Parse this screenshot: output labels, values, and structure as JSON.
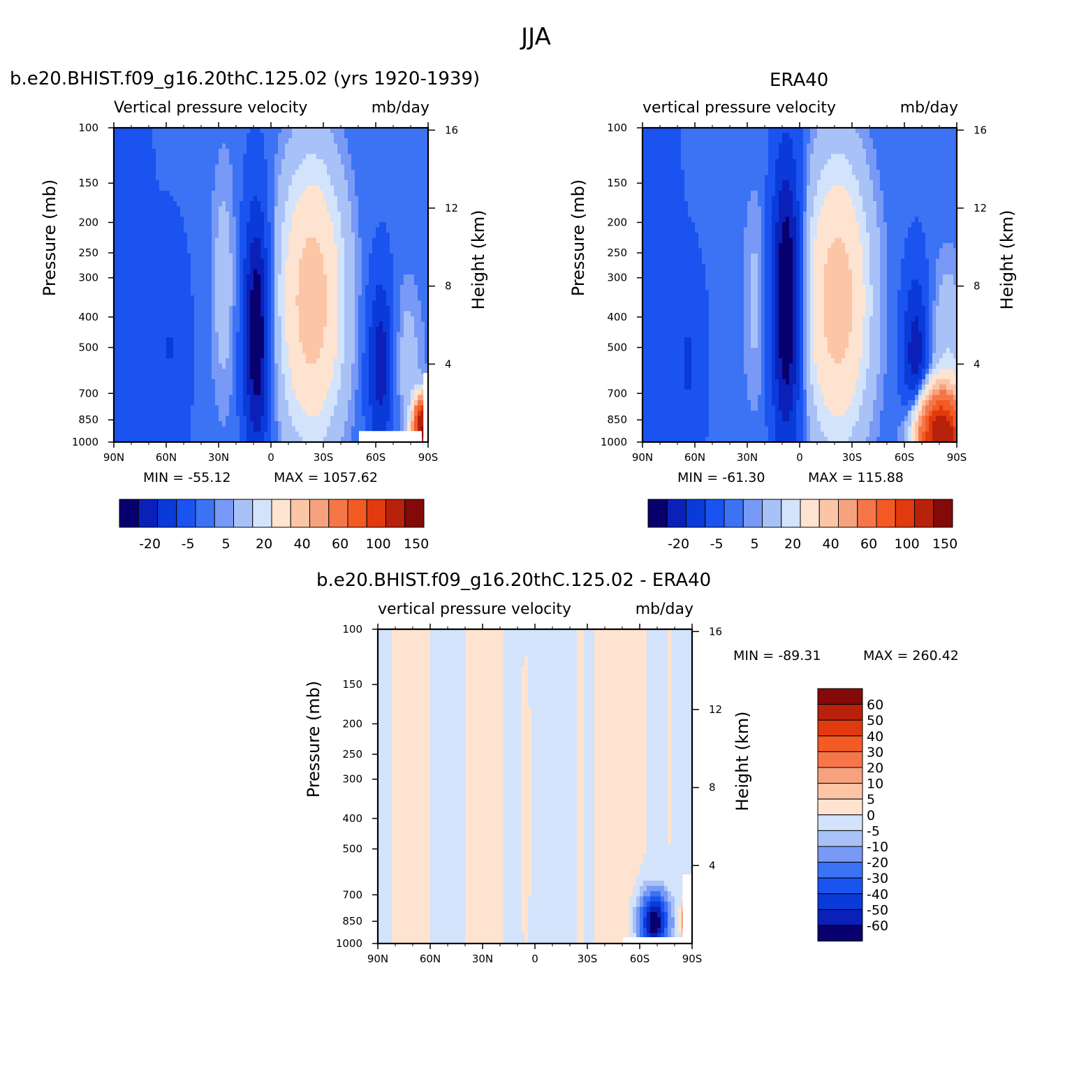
{
  "page": {
    "title": "JJA"
  },
  "chart_data": [
    {
      "type": "heatmap",
      "case_title": "b.e20.BHIST.f09_g16.20thC.125.02 (yrs 1920-1939)",
      "left_subtitle": "Vertical pressure velocity",
      "right_subtitle": "mb/day",
      "ylabel": "Pressure (mb)",
      "ylabel_right": "Height (km)",
      "x_ticks": [
        "90N",
        "60N",
        "30N",
        "0",
        "30S",
        "60S",
        "90S"
      ],
      "y_ticks": [
        "100",
        "150",
        "200",
        "250",
        "300",
        "400",
        "500",
        "700",
        "850",
        "1000"
      ],
      "y_ticks_right": [
        "16",
        "12",
        "8",
        "4"
      ],
      "ylim": [
        1000,
        100
      ],
      "min_label": "MIN = -55.12",
      "max_label": "MAX = 1057.62",
      "colorbar_labels": [
        "-20",
        "-5",
        "5",
        "20",
        "40",
        "60",
        "100",
        "150"
      ],
      "colorbar_colors": [
        "#08006e",
        "#0a20b8",
        "#0a3ad8",
        "#1a53f0",
        "#3c73f5",
        "#7899f5",
        "#a8c2f7",
        "#d2e3fb",
        "#fde3d0",
        "#fbc5a6",
        "#f7a27e",
        "#f6764a",
        "#f45a24",
        "#e03a0e",
        "#b8210a",
        "#840a0a"
      ]
    },
    {
      "type": "heatmap",
      "case_title": "ERA40",
      "left_subtitle": "vertical pressure velocity",
      "right_subtitle": "mb/day",
      "ylabel": "Pressure (mb)",
      "ylabel_right": "Height (km)",
      "x_ticks": [
        "90N",
        "60N",
        "30N",
        "0",
        "30S",
        "60S",
        "90S"
      ],
      "y_ticks": [
        "100",
        "150",
        "200",
        "250",
        "300",
        "400",
        "500",
        "700",
        "850",
        "1000"
      ],
      "y_ticks_right": [
        "16",
        "12",
        "8",
        "4"
      ],
      "ylim": [
        1000,
        100
      ],
      "min_label": "MIN = -61.30",
      "max_label": "MAX = 115.88",
      "colorbar_labels": [
        "-20",
        "-5",
        "5",
        "20",
        "40",
        "60",
        "100",
        "150"
      ],
      "colorbar_colors": [
        "#08006e",
        "#0a20b8",
        "#0a3ad8",
        "#1a53f0",
        "#3c73f5",
        "#7899f5",
        "#a8c2f7",
        "#d2e3fb",
        "#fde3d0",
        "#fbc5a6",
        "#f7a27e",
        "#f6764a",
        "#f45a24",
        "#e03a0e",
        "#b8210a",
        "#840a0a"
      ]
    },
    {
      "type": "heatmap",
      "case_title": "b.e20.BHIST.f09_g16.20thC.125.02 - ERA40",
      "left_subtitle": "vertical pressure velocity",
      "right_subtitle": "mb/day",
      "ylabel": "Pressure (mb)",
      "ylabel_right": "Height (km)",
      "x_ticks": [
        "90N",
        "60N",
        "30N",
        "0",
        "30S",
        "60S",
        "90S"
      ],
      "y_ticks": [
        "100",
        "150",
        "200",
        "250",
        "300",
        "400",
        "500",
        "700",
        "850",
        "1000"
      ],
      "y_ticks_right": [
        "16",
        "12",
        "8",
        "4"
      ],
      "ylim": [
        1000,
        100
      ],
      "min_label": "MIN = -89.31",
      "max_label": "MAX = 260.42",
      "colorbar_labels": [
        "60",
        "50",
        "40",
        "30",
        "20",
        "10",
        "5",
        "0",
        "-5",
        "-10",
        "-20",
        "-30",
        "-40",
        "-50",
        "-60"
      ],
      "colorbar_colors": [
        "#840a0a",
        "#b8210a",
        "#e03a0e",
        "#f45a24",
        "#f6764a",
        "#f7a27e",
        "#fbc5a6",
        "#fde3d0",
        "#d2e3fb",
        "#a8c2f7",
        "#7899f5",
        "#3c73f5",
        "#1a53f0",
        "#0a3ad8",
        "#0a20b8",
        "#08006e"
      ]
    }
  ]
}
